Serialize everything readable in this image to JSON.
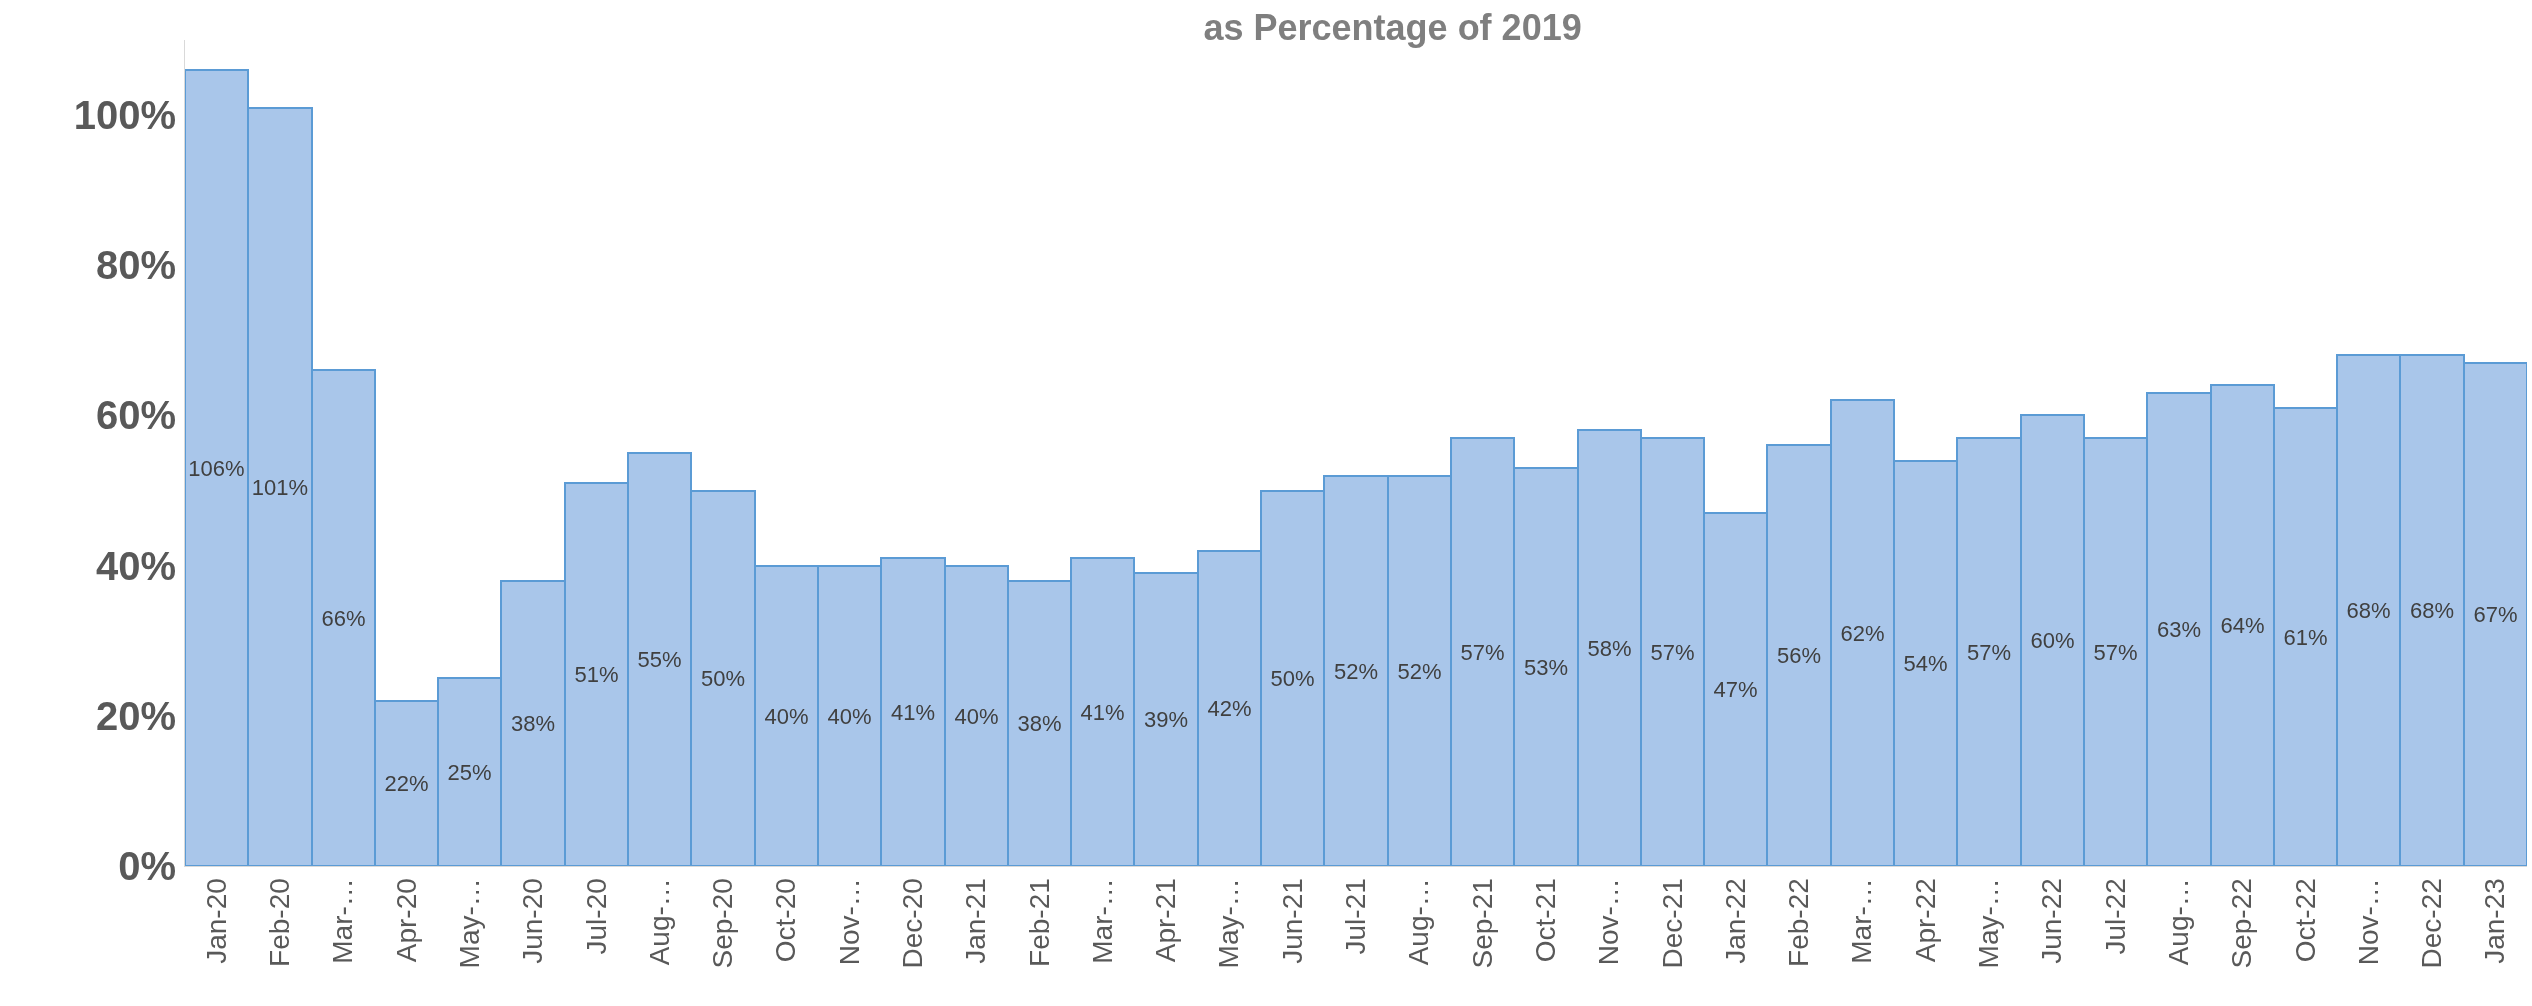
{
  "chart_data": {
    "type": "bar",
    "title": "as Percentage of 2019",
    "categories": [
      "Jan-20",
      "Feb-20",
      "Mar-…",
      "Apr-20",
      "May-…",
      "Jun-20",
      "Jul-20",
      "Aug-…",
      "Sep-20",
      "Oct-20",
      "Nov-…",
      "Dec-20",
      "Jan-21",
      "Feb-21",
      "Mar-…",
      "Apr-21",
      "May-…",
      "Jun-21",
      "Jul-21",
      "Aug-…",
      "Sep-21",
      "Oct-21",
      "Nov-…",
      "Dec-21",
      "Jan-22",
      "Feb-22",
      "Mar-…",
      "Apr-22",
      "May-…",
      "Jun-22",
      "Jul-22",
      "Aug-…",
      "Sep-22",
      "Oct-22",
      "Nov-…",
      "Dec-22",
      "Jan-23"
    ],
    "values": [
      106,
      101,
      66,
      22,
      25,
      38,
      51,
      55,
      50,
      40,
      40,
      41,
      40,
      38,
      41,
      39,
      42,
      50,
      52,
      52,
      57,
      53,
      58,
      57,
      47,
      56,
      62,
      54,
      57,
      60,
      57,
      63,
      64,
      61,
      68,
      68,
      67
    ],
    "value_labels": [
      "106%",
      "101%",
      "66%",
      "22%",
      "25%",
      "38%",
      "51%",
      "55%",
      "50%",
      "40%",
      "40%",
      "41%",
      "40%",
      "38%",
      "41%",
      "39%",
      "42%",
      "50%",
      "52%",
      "52%",
      "57%",
      "53%",
      "58%",
      "57%",
      "47%",
      "56%",
      "62%",
      "54%",
      "57%",
      "60%",
      "57%",
      "63%",
      "64%",
      "61%",
      "68%",
      "68%",
      "67%"
    ],
    "color": "#a9c6ea",
    "ylim": [
      0,
      110
    ],
    "yticks": [
      {
        "value": 0,
        "label": "0%"
      },
      {
        "value": 20,
        "label": "20%"
      },
      {
        "value": 40,
        "label": "40%"
      },
      {
        "value": 60,
        "label": "60%"
      },
      {
        "value": 80,
        "label": "80%"
      },
      {
        "value": 100,
        "label": "100%"
      }
    ],
    "grid": false,
    "legend": false
  }
}
